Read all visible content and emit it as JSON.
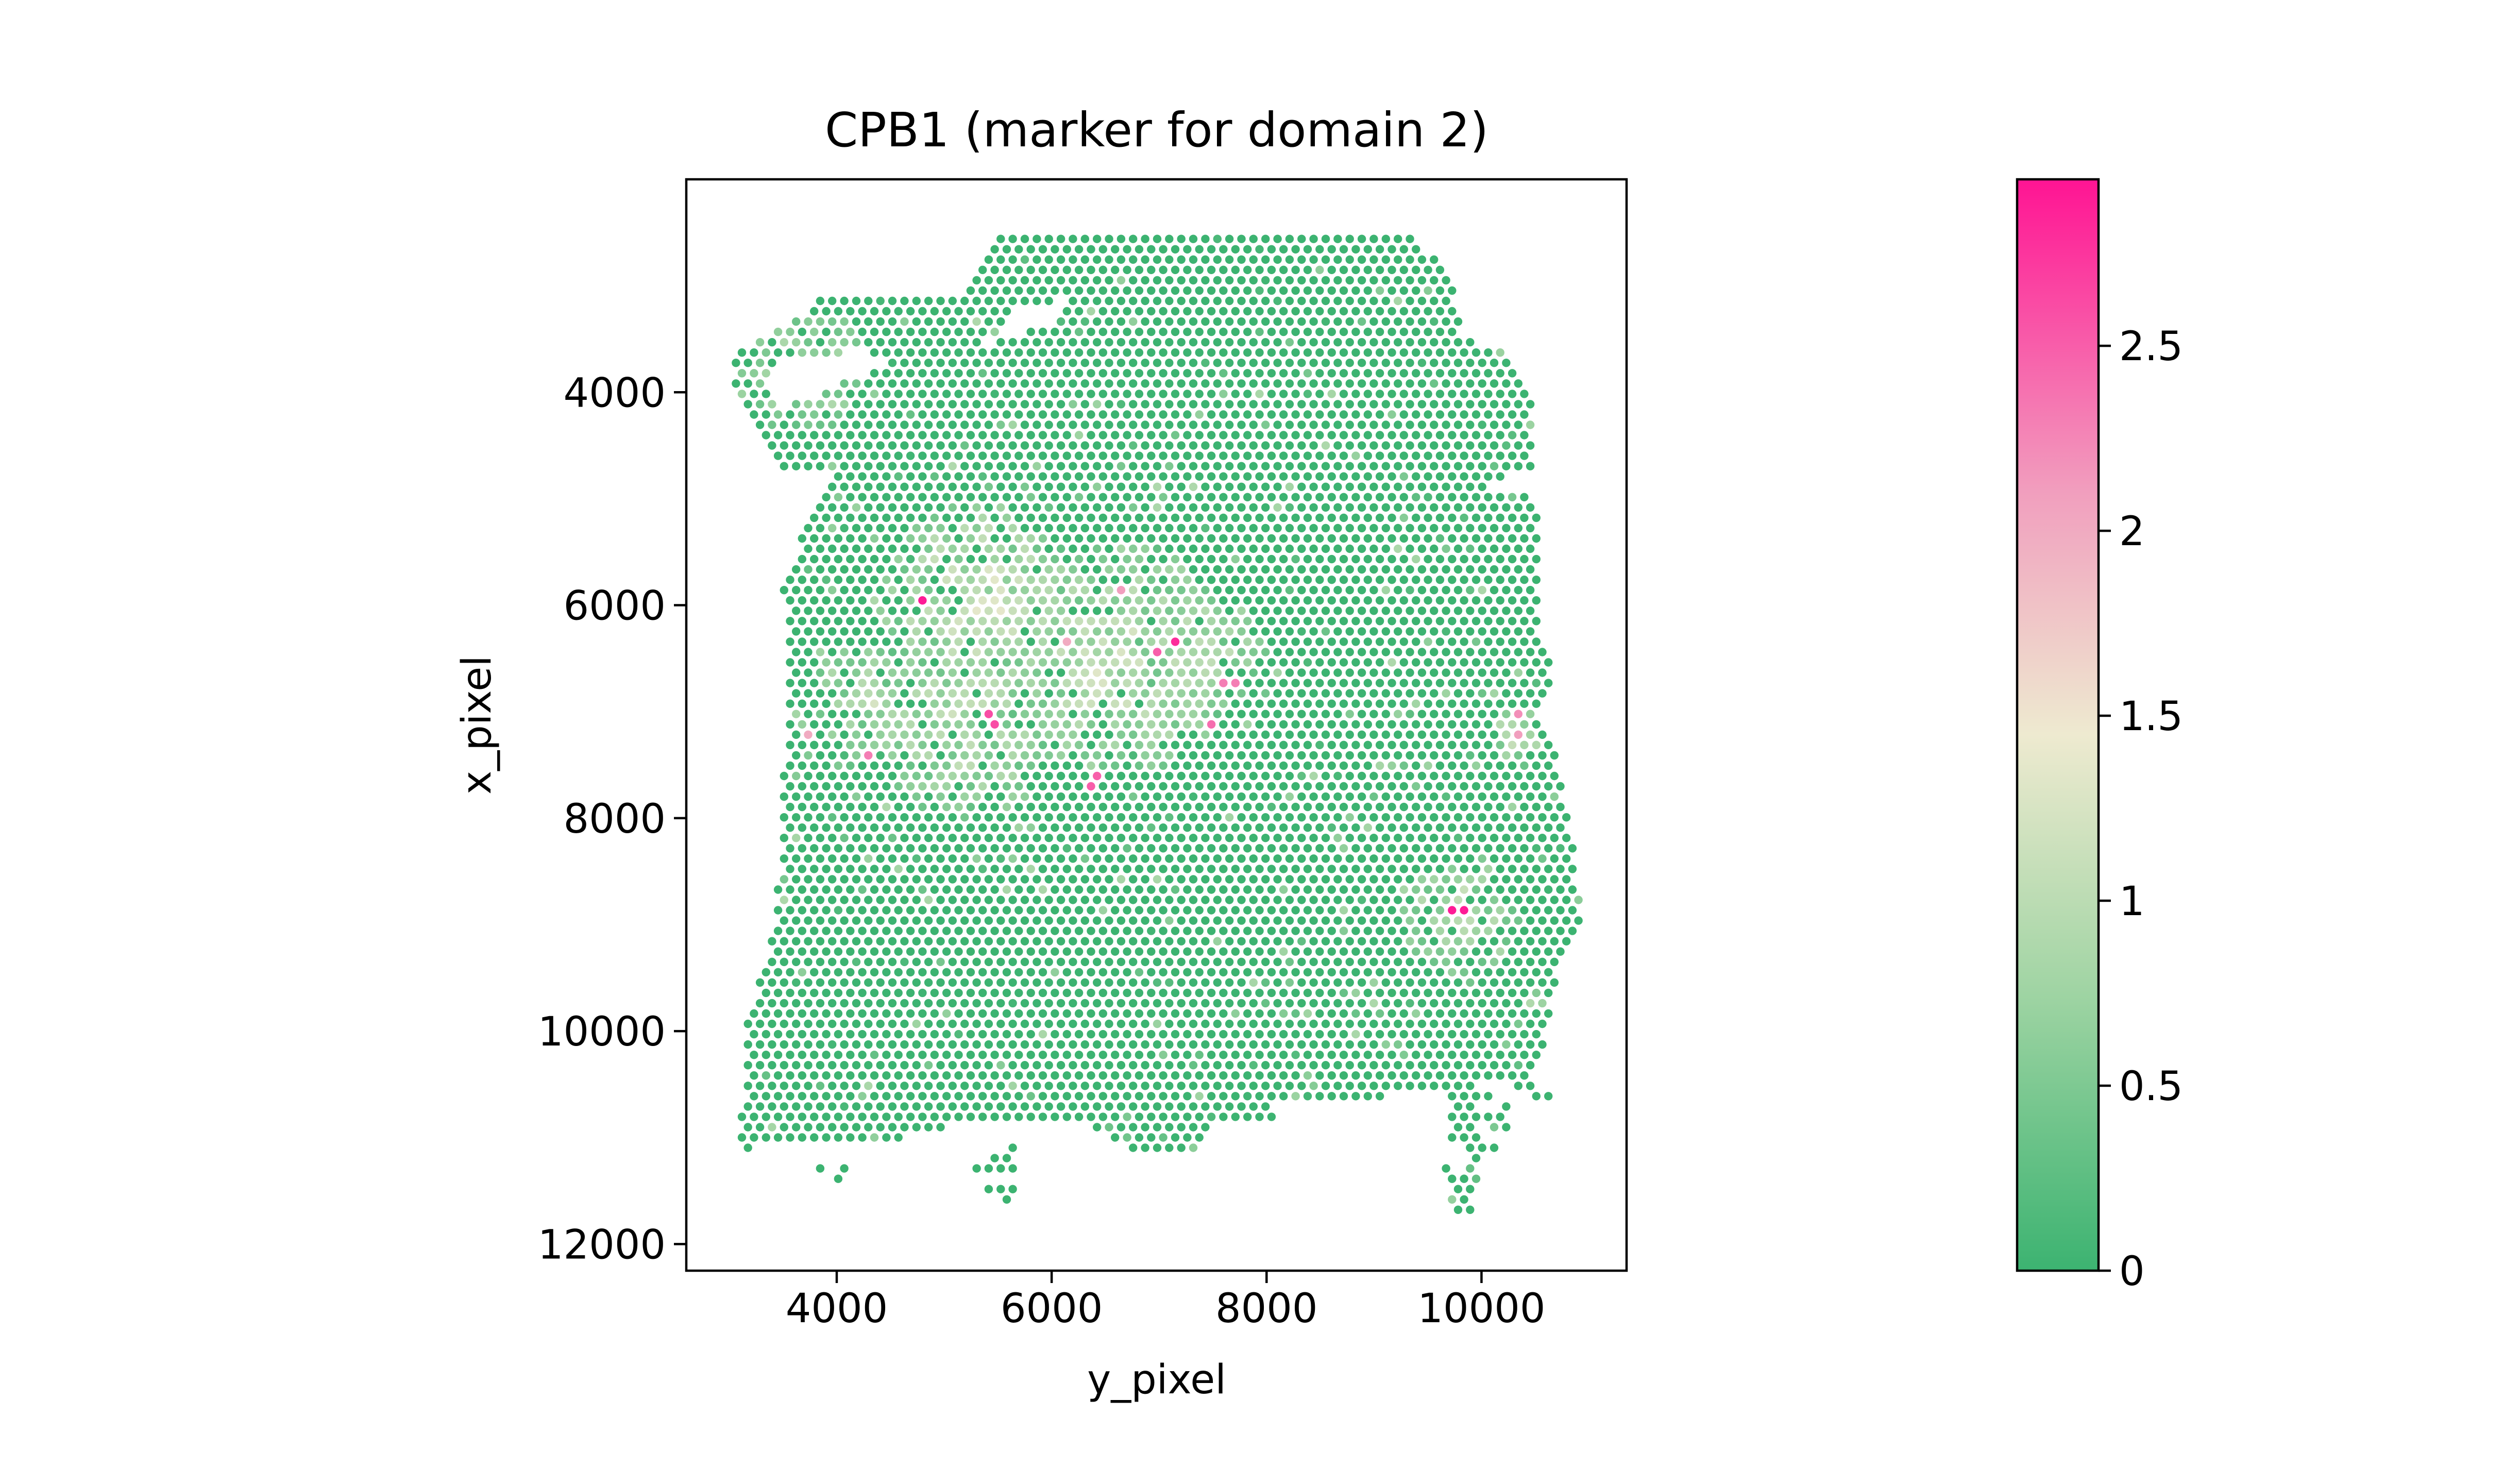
{
  "chart_data": {
    "type": "scatter",
    "title": "CPB1 (marker for domain 2)",
    "xlabel": "y_pixel",
    "ylabel": "x_pixel",
    "xlim": [
      2600,
      11350
    ],
    "ylim": [
      12250,
      2000
    ],
    "y_inverted": true,
    "x_ticks": [
      4000,
      6000,
      8000,
      10000
    ],
    "y_ticks": [
      4000,
      6000,
      8000,
      10000,
      12000
    ],
    "grid": false,
    "point_color_default": "#3cb371",
    "colorbar": {
      "min": 0,
      "max": 2.95,
      "ticks": [
        0,
        0.5,
        1,
        1.5,
        2,
        2.5
      ],
      "tick_labels": [
        "0",
        "0.5",
        "1",
        "1.5",
        "2",
        "2.5"
      ],
      "stops": [
        {
          "value": 0,
          "color": "#3cb371"
        },
        {
          "value": 0.75,
          "color": "#9fd4a3"
        },
        {
          "value": 1.45,
          "color": "#eeead0"
        },
        {
          "value": 2.1,
          "color": "#f19fbe"
        },
        {
          "value": 2.95,
          "color": "#ff1493"
        }
      ]
    },
    "tissue_outline": [
      [
        5500,
        2550
      ],
      [
        9400,
        2550
      ],
      [
        9750,
        3000
      ],
      [
        9850,
        3500
      ],
      [
        10300,
        3650
      ],
      [
        10450,
        4000
      ],
      [
        10500,
        4700
      ],
      [
        10200,
        4900
      ],
      [
        10550,
        5000
      ],
      [
        10550,
        6250
      ],
      [
        10700,
        6500
      ],
      [
        10550,
        7000
      ],
      [
        10750,
        7600
      ],
      [
        10850,
        8300
      ],
      [
        10950,
        8900
      ],
      [
        10700,
        9500
      ],
      [
        10600,
        10000
      ],
      [
        10500,
        10400
      ],
      [
        10150,
        10500
      ],
      [
        9400,
        10550
      ],
      [
        8650,
        10700
      ],
      [
        8100,
        10700
      ],
      [
        8050,
        10850
      ],
      [
        7500,
        10900
      ],
      [
        7400,
        11150
      ],
      [
        6750,
        11150
      ],
      [
        6350,
        10900
      ],
      [
        5050,
        10900
      ],
      [
        4650,
        11000
      ],
      [
        4150,
        11050
      ],
      [
        3100,
        11100
      ],
      [
        3150,
        9900
      ],
      [
        3350,
        9300
      ],
      [
        3450,
        8600
      ],
      [
        3500,
        7800
      ],
      [
        3550,
        6800
      ],
      [
        3500,
        5800
      ],
      [
        3750,
        5200
      ],
      [
        4000,
        4800
      ],
      [
        3450,
        4700
      ],
      [
        3100,
        4150
      ],
      [
        3000,
        3700
      ],
      [
        3400,
        3450
      ],
      [
        3900,
        3100
      ],
      [
        5100,
        3100
      ],
      [
        5350,
        2800
      ]
    ],
    "tissue_cutouts": [
      [
        [
          5600,
          3250
        ],
        [
          6200,
          3100
        ],
        [
          6050,
          3350
        ],
        [
          5650,
          3450
        ],
        [
          5400,
          3550
        ]
      ],
      [
        [
          3350,
          3750
        ],
        [
          4200,
          3600
        ],
        [
          4500,
          3700
        ],
        [
          4100,
          3900
        ],
        [
          3700,
          4050
        ],
        [
          3450,
          4150
        ]
      ],
      [
        [
          9950,
          4850
        ],
        [
          10500,
          4750
        ],
        [
          10500,
          4950
        ],
        [
          10100,
          4950
        ]
      ]
    ],
    "outlier_regions": [
      [
        [
          5250,
          11150
        ],
        [
          5650,
          11050
        ],
        [
          5650,
          11650
        ],
        [
          5250,
          11550
        ]
      ],
      [
        [
          3800,
          11200
        ],
        [
          4300,
          11200
        ],
        [
          4000,
          11450
        ],
        [
          3750,
          11400
        ]
      ],
      [
        [
          9700,
          10550
        ],
        [
          10250,
          10550
        ],
        [
          10250,
          11000
        ],
        [
          10000,
          11250
        ],
        [
          9900,
          11800
        ],
        [
          9650,
          11550
        ]
      ],
      [
        [
          10300,
          10450
        ],
        [
          10700,
          10450
        ],
        [
          10700,
          10650
        ],
        [
          10300,
          10650
        ]
      ],
      [
        [
          10850,
          4250
        ],
        [
          10980,
          4250
        ],
        [
          10980,
          4400
        ],
        [
          10850,
          4400
        ]
      ]
    ],
    "expression_regions": [
      {
        "center": [
          5300,
          5950
        ],
        "radius": 900,
        "value": 1.35
      },
      {
        "center": [
          6600,
          6500
        ],
        "radius": 1100,
        "value": 1.25
      },
      {
        "center": [
          5200,
          7100
        ],
        "radius": 900,
        "value": 1.15
      },
      {
        "center": [
          7400,
          6450
        ],
        "radius": 600,
        "value": 1.2
      },
      {
        "center": [
          4300,
          6900
        ],
        "radius": 550,
        "value": 1.1
      },
      {
        "center": [
          3700,
          3800
        ],
        "radius": 600,
        "value": 1.0
      },
      {
        "center": [
          9800,
          8950
        ],
        "radius": 550,
        "value": 1.25
      },
      {
        "center": [
          10300,
          7200
        ],
        "radius": 250,
        "value": 1.2
      }
    ],
    "hotspots": [
      {
        "x": 4750,
        "y": 5960,
        "value": 2.9
      },
      {
        "x": 7100,
        "y": 6350,
        "value": 2.8
      },
      {
        "x": 6950,
        "y": 6400,
        "value": 2.5
      },
      {
        "x": 7650,
        "y": 6750,
        "value": 2.3
      },
      {
        "x": 5450,
        "y": 7070,
        "value": 2.6
      },
      {
        "x": 7450,
        "y": 7100,
        "value": 2.4
      },
      {
        "x": 4300,
        "y": 7450,
        "value": 2.3
      },
      {
        "x": 6400,
        "y": 7650,
        "value": 2.5
      },
      {
        "x": 9700,
        "y": 8880,
        "value": 2.9
      },
      {
        "x": 9800,
        "y": 8880,
        "value": 2.9
      },
      {
        "x": 10350,
        "y": 7000,
        "value": 2.2
      },
      {
        "x": 10350,
        "y": 7250,
        "value": 2.1
      },
      {
        "x": 6650,
        "y": 5850,
        "value": 2.1
      },
      {
        "x": 6150,
        "y": 6300,
        "value": 2.0
      },
      {
        "x": 3700,
        "y": 7200,
        "value": 2.0
      }
    ]
  }
}
